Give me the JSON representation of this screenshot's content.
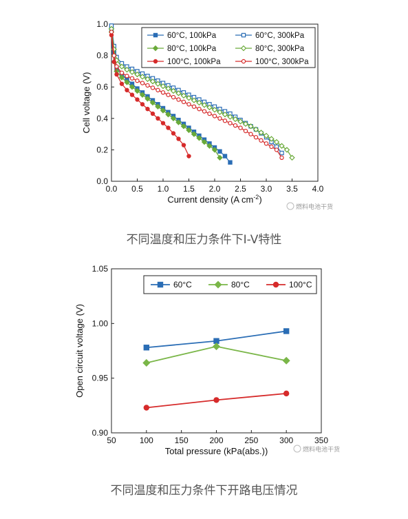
{
  "chart_data": [
    {
      "type": "line",
      "title": "",
      "xlabel": "Current density (A cm",
      "xlabel_sup": "-2",
      "xlabel_close": ")",
      "ylabel": "Cell voltage (V)",
      "xlim": [
        0,
        4.0
      ],
      "ylim": [
        0,
        1.0
      ],
      "xticks": [
        "0.0",
        "0.5",
        "1.0",
        "1.5",
        "2.0",
        "2.5",
        "3.0",
        "3.5",
        "4.0"
      ],
      "yticks": [
        "0.0",
        "0.2",
        "0.4",
        "0.6",
        "0.8",
        "1.0"
      ],
      "legend_position": "top-right",
      "grid": false,
      "series": [
        {
          "name": "60°C, 100kPa",
          "color": "#2a6db5",
          "marker": "square",
          "filled": true,
          "x": [
            0,
            0.05,
            0.1,
            0.2,
            0.3,
            0.4,
            0.5,
            0.6,
            0.7,
            0.8,
            0.9,
            1.0,
            1.1,
            1.2,
            1.3,
            1.4,
            1.5,
            1.6,
            1.7,
            1.8,
            1.9,
            2.0,
            2.1,
            2.2,
            2.3
          ],
          "y": [
            0.97,
            0.82,
            0.72,
            0.68,
            0.65,
            0.62,
            0.59,
            0.565,
            0.54,
            0.515,
            0.49,
            0.465,
            0.44,
            0.415,
            0.39,
            0.365,
            0.34,
            0.315,
            0.29,
            0.265,
            0.24,
            0.215,
            0.19,
            0.16,
            0.12
          ]
        },
        {
          "name": "60°C, 300kPa",
          "color": "#2a6db5",
          "marker": "square",
          "filled": false,
          "x": [
            0,
            0.05,
            0.1,
            0.2,
            0.3,
            0.4,
            0.5,
            0.6,
            0.7,
            0.8,
            0.9,
            1.0,
            1.1,
            1.2,
            1.3,
            1.4,
            1.5,
            1.6,
            1.7,
            1.8,
            1.9,
            2.0,
            2.1,
            2.2,
            2.3,
            2.4,
            2.5,
            2.6,
            2.7,
            2.8,
            2.9,
            3.0,
            3.1,
            3.2,
            3.3
          ],
          "y": [
            0.99,
            0.86,
            0.79,
            0.75,
            0.73,
            0.715,
            0.7,
            0.685,
            0.67,
            0.655,
            0.64,
            0.625,
            0.61,
            0.595,
            0.58,
            0.565,
            0.55,
            0.535,
            0.52,
            0.505,
            0.49,
            0.475,
            0.46,
            0.445,
            0.43,
            0.41,
            0.39,
            0.37,
            0.35,
            0.33,
            0.305,
            0.28,
            0.25,
            0.22,
            0.18
          ]
        },
        {
          "name": "80°C, 100kPa",
          "color": "#6aaa3a",
          "marker": "diamond",
          "filled": true,
          "x": [
            0,
            0.05,
            0.1,
            0.2,
            0.3,
            0.4,
            0.5,
            0.6,
            0.7,
            0.8,
            0.9,
            1.0,
            1.1,
            1.2,
            1.3,
            1.4,
            1.5,
            1.6,
            1.7,
            1.8,
            1.9,
            2.0,
            2.1
          ],
          "y": [
            0.95,
            0.8,
            0.7,
            0.66,
            0.63,
            0.6,
            0.575,
            0.55,
            0.525,
            0.5,
            0.475,
            0.45,
            0.425,
            0.4,
            0.375,
            0.35,
            0.325,
            0.3,
            0.275,
            0.25,
            0.225,
            0.2,
            0.15
          ]
        },
        {
          "name": "80°C, 300kPa",
          "color": "#6aaa3a",
          "marker": "diamond",
          "filled": false,
          "x": [
            0,
            0.05,
            0.1,
            0.2,
            0.3,
            0.4,
            0.5,
            0.6,
            0.7,
            0.8,
            0.9,
            1.0,
            1.1,
            1.2,
            1.3,
            1.4,
            1.5,
            1.6,
            1.7,
            1.8,
            1.9,
            2.0,
            2.1,
            2.2,
            2.3,
            2.4,
            2.5,
            2.6,
            2.7,
            2.8,
            2.9,
            3.0,
            3.1,
            3.2,
            3.3,
            3.4,
            3.5
          ],
          "y": [
            0.97,
            0.84,
            0.77,
            0.73,
            0.71,
            0.695,
            0.68,
            0.665,
            0.65,
            0.635,
            0.62,
            0.605,
            0.59,
            0.575,
            0.56,
            0.545,
            0.53,
            0.515,
            0.5,
            0.485,
            0.47,
            0.455,
            0.44,
            0.425,
            0.41,
            0.395,
            0.38,
            0.365,
            0.35,
            0.33,
            0.31,
            0.29,
            0.27,
            0.25,
            0.225,
            0.2,
            0.15
          ]
        },
        {
          "name": "100°C, 100kPa",
          "color": "#d62b2b",
          "marker": "circle",
          "filled": true,
          "x": [
            0,
            0.05,
            0.1,
            0.2,
            0.3,
            0.4,
            0.5,
            0.6,
            0.7,
            0.8,
            0.9,
            1.0,
            1.1,
            1.2,
            1.3,
            1.4,
            1.5
          ],
          "y": [
            0.93,
            0.76,
            0.68,
            0.62,
            0.58,
            0.55,
            0.52,
            0.49,
            0.46,
            0.43,
            0.4,
            0.37,
            0.34,
            0.305,
            0.27,
            0.23,
            0.16
          ]
        },
        {
          "name": "100°C, 300kPa",
          "color": "#d62b2b",
          "marker": "circle",
          "filled": false,
          "x": [
            0,
            0.05,
            0.1,
            0.2,
            0.3,
            0.4,
            0.5,
            0.6,
            0.7,
            0.8,
            0.9,
            1.0,
            1.1,
            1.2,
            1.3,
            1.4,
            1.5,
            1.6,
            1.7,
            1.8,
            1.9,
            2.0,
            2.1,
            2.2,
            2.3,
            2.4,
            2.5,
            2.6,
            2.7,
            2.8,
            2.9,
            3.0,
            3.1,
            3.2,
            3.3
          ],
          "y": [
            0.95,
            0.8,
            0.73,
            0.69,
            0.67,
            0.655,
            0.64,
            0.625,
            0.61,
            0.595,
            0.58,
            0.565,
            0.55,
            0.535,
            0.52,
            0.505,
            0.49,
            0.475,
            0.46,
            0.445,
            0.43,
            0.415,
            0.4,
            0.385,
            0.37,
            0.355,
            0.34,
            0.32,
            0.3,
            0.28,
            0.26,
            0.24,
            0.22,
            0.2,
            0.15
          ]
        }
      ]
    },
    {
      "type": "line",
      "title": "",
      "xlabel": "Total pressure (kPa(abs.))",
      "ylabel": "Open circuit voltage (V)",
      "xlim": [
        50,
        350
      ],
      "ylim": [
        0.9,
        1.05
      ],
      "xticks": [
        "50",
        "100",
        "150",
        "200",
        "250",
        "300",
        "350"
      ],
      "yticks": [
        "0.90",
        "0.95",
        "1.00",
        "1.05"
      ],
      "legend_position": "top",
      "grid": false,
      "series": [
        {
          "name": "60°C",
          "color": "#2a6db5",
          "marker": "square",
          "filled": true,
          "x": [
            100,
            200,
            300
          ],
          "y": [
            0.978,
            0.984,
            0.993
          ]
        },
        {
          "name": "80°C",
          "color": "#7ab648",
          "marker": "diamond",
          "filled": true,
          "x": [
            100,
            200,
            300
          ],
          "y": [
            0.964,
            0.979,
            0.966
          ]
        },
        {
          "name": "100°C",
          "color": "#d62b2b",
          "marker": "circle",
          "filled": true,
          "x": [
            100,
            200,
            300
          ],
          "y": [
            0.923,
            0.93,
            0.936
          ]
        }
      ]
    }
  ],
  "captions": {
    "chart1": "不同温度和压力条件下I-V特性",
    "chart2": "不同温度和压力条件下开路电压情况"
  },
  "watermark": "燃料电池干货"
}
